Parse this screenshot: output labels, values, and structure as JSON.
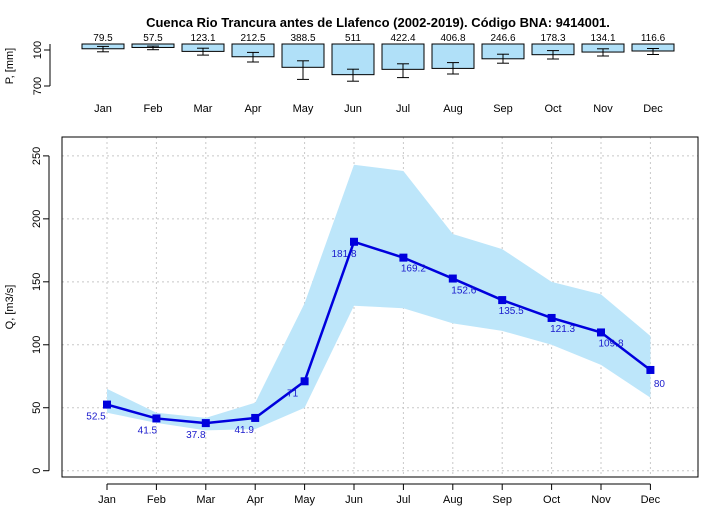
{
  "chart_data": [
    {
      "type": "bar",
      "panel": "precipitation",
      "title": "Cuenca Rio Trancura antes de Llafenco (2002-2019). Código BNA: 9414001.",
      "ylabel": "P, [mm]",
      "ylim": [
        700,
        0
      ],
      "y_ticks": [
        100,
        700
      ],
      "y_tick_labels": [
        "100",
        "700"
      ],
      "categories": [
        "Jan",
        "Feb",
        "Mar",
        "Apr",
        "May",
        "Jun",
        "Jul",
        "Aug",
        "Sep",
        "Oct",
        "Nov",
        "Dec"
      ],
      "values": [
        79.5,
        57.5,
        123.1,
        212.5,
        388.5,
        511,
        422.4,
        406.8,
        246.6,
        178.3,
        134.1,
        116.6
      ],
      "value_labels": [
        "79.5",
        "57.5",
        "123.1",
        "212.5",
        "388.5",
        "511",
        "422.4",
        "406.8",
        "246.6",
        "178.3",
        "134.1",
        "116.6"
      ],
      "errors_low": [
        40,
        35,
        70,
        140,
        280,
        420,
        330,
        310,
        170,
        110,
        80,
        75
      ],
      "errors_high": [
        130,
        95,
        185,
        300,
        590,
        620,
        560,
        500,
        320,
        250,
        200,
        175
      ],
      "bar_color": "#b0e0f8",
      "grid": false
    },
    {
      "type": "line",
      "panel": "streamflow",
      "ylabel": "Q, [m3/s]",
      "xlabel": "",
      "ylim": [
        -5,
        265
      ],
      "y_ticks": [
        0,
        50,
        100,
        150,
        200,
        250
      ],
      "y_tick_labels": [
        "0",
        "50",
        "100",
        "150",
        "200",
        "250"
      ],
      "categories": [
        "Jan",
        "Feb",
        "Mar",
        "Apr",
        "May",
        "Jun",
        "Jul",
        "Aug",
        "Sep",
        "Oct",
        "Nov",
        "Dec"
      ],
      "series": [
        {
          "values": [
            52.5,
            41.5,
            37.8,
            41.9,
            71,
            181.8,
            169.2,
            152.6,
            135.5,
            121.3,
            109.8,
            80
          ],
          "data_labels": [
            "52.5",
            "41.5",
            "37.8",
            "41.9",
            "71",
            "181.8",
            "169.2",
            "152.6",
            "135.5",
            "121.3",
            "109.8",
            "80"
          ],
          "color": "#0000dd"
        }
      ],
      "band": {
        "lower": [
          46,
          38,
          32,
          33,
          50,
          131,
          129,
          117,
          111,
          100,
          84,
          58
        ],
        "upper": [
          65,
          46,
          42,
          54,
          133,
          243,
          238,
          188,
          176,
          150,
          140,
          107
        ],
        "color": "#bde6fa"
      },
      "grid": true,
      "grid_color": "#c8c8c8"
    }
  ]
}
